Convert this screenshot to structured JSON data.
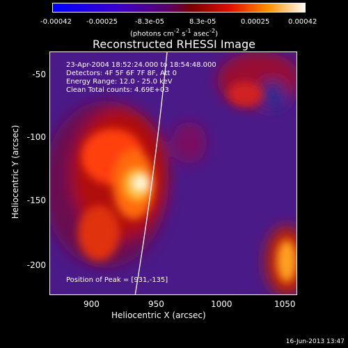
{
  "colorbar": {
    "tick_labels": [
      "-0.00042",
      "-0.00025",
      "-8.3e-05",
      "8.3e-05",
      "0.00025",
      "0.00042"
    ],
    "units_label": "(photons cm",
    "units_exp1": "-2",
    "units_mid": " s",
    "units_exp2": "-1",
    "units_end": " asec",
    "units_exp3": "-2",
    "units_close": ")"
  },
  "title": "Reconstructed RHESSI Image",
  "info": {
    "line1": "23-Apr-2004 18:52:24.000 to 18:54:48.000",
    "line2": "Detectors: 4F 5F 6F 7F 8F, Att 0",
    "line3": "Energy Range: 12.0 - 25.0 keV",
    "line4": "Clean     Total counts: 4.69E+03"
  },
  "peak": "Position of Peak = [931,-135]",
  "axes": {
    "x_label": "Heliocentric X (arcsec)",
    "y_label": "Heliocentric Y (arcsec)",
    "x_ticks": [
      "900",
      "950",
      "1000",
      "1050"
    ],
    "y_ticks": [
      "-50",
      "-100",
      "-150",
      "-200"
    ]
  },
  "timestamp": "16-Jun-2013 13:47",
  "colors": {
    "background": "#000000",
    "frame": "#ffffff"
  }
}
